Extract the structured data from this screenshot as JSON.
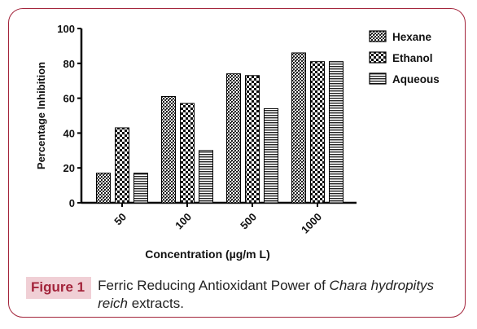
{
  "chart_data": {
    "type": "bar",
    "categories": [
      "50",
      "100",
      "500",
      "1000"
    ],
    "series": [
      {
        "name": "Hexane",
        "values": [
          17,
          61,
          74,
          86
        ],
        "pattern": "crosshatch"
      },
      {
        "name": "Ethanol",
        "values": [
          43,
          57,
          73,
          81
        ],
        "pattern": "checker"
      },
      {
        "name": "Aqueous",
        "values": [
          17,
          30,
          54,
          81
        ],
        "pattern": "horizontal-lines"
      }
    ],
    "xlabel": "Concentration (µg/m L)",
    "ylabel": "Percentage Inhibition",
    "ylim": [
      0,
      100
    ],
    "yticks": [
      0,
      20,
      40,
      60,
      80,
      100
    ],
    "legend_placement": "top-right",
    "grid": false
  },
  "caption": {
    "label": "Figure 1",
    "text_pre": "Ferric Reducing Antioxidant Power of ",
    "text_italic1": "Chara hydropitys",
    "text_mid": " ",
    "text_italic2": "reich",
    "text_post": " extracts."
  },
  "colors": {
    "frame_border": "#a3243b",
    "label_bg": "#f0cfd5",
    "label_text": "#a3243b"
  }
}
